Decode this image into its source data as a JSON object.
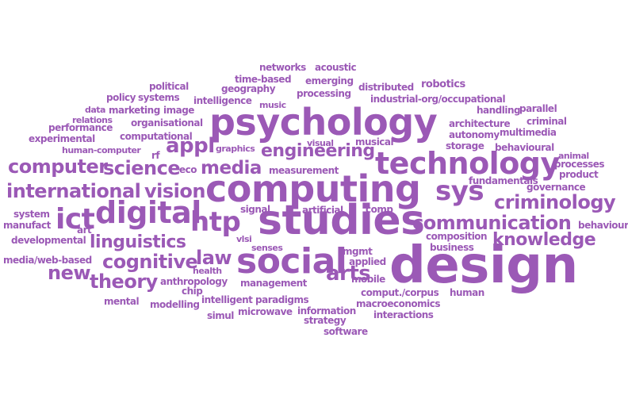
{
  "colors": {
    "word": "#9b59b6",
    "background": "#ffffff"
  },
  "words": [
    "networks",
    "acoustic",
    "time-based",
    "emerging",
    "political",
    "geography",
    "distributed",
    "robotics",
    "policy",
    "systems",
    "intelligence",
    "processing",
    "industrial-org/occupational",
    "data",
    "marketing",
    "image",
    "music",
    "handling",
    "parallel",
    "relations",
    "criminal",
    "performance",
    "organisational",
    "psychology",
    "architecture",
    "multimedia",
    "experimental",
    "computational",
    "autonomy",
    "visual",
    "musical",
    "storage",
    "behavioural",
    "human-computer",
    "rf",
    "graphics",
    "appl",
    "animal",
    "processes",
    "engineering",
    "computer",
    "science",
    "eco",
    "media",
    "measurement",
    "technology",
    "product",
    "fundamentals",
    "governance",
    "international",
    "vision",
    "computing",
    "sys",
    "system",
    "signal",
    "artificial",
    "comp",
    "criminology",
    "manufact",
    "ict",
    "digital",
    "htp",
    "studies",
    "communication",
    "behaviour",
    "art",
    "developmental",
    "vlsi",
    "linguistics",
    "composition",
    "knowledge",
    "media/web-based",
    "senses",
    "mgmt",
    "business",
    "cognitive",
    "law",
    "social",
    "applied",
    "design",
    "new",
    "theory",
    "anthropology",
    "management",
    "mobile",
    "chip",
    "health",
    "arts",
    "mental",
    "modelling",
    "intelligent",
    "paradigms",
    "comput./corpus",
    "human",
    "macroeconomics",
    "simul",
    "microwave",
    "information",
    "interactions",
    "strategy",
    "software"
  ]
}
